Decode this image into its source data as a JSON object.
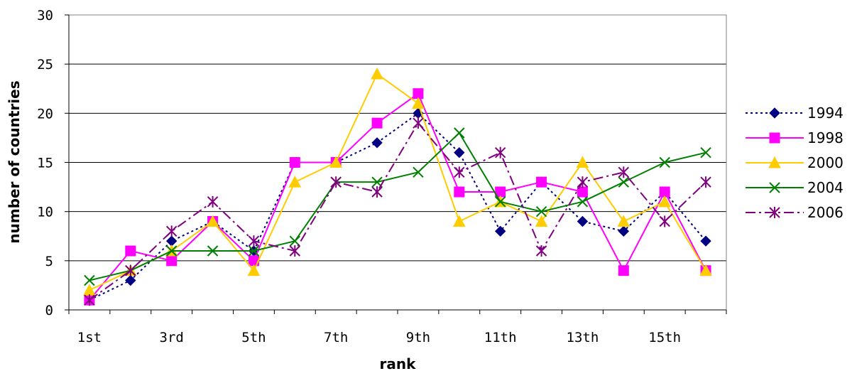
{
  "chart_data": {
    "type": "line",
    "title": "",
    "xlabel": "rank",
    "ylabel": "number of countries",
    "categories": [
      "1st",
      "2nd",
      "3rd",
      "4th",
      "5th",
      "6th",
      "7th",
      "8th",
      "9th",
      "10th",
      "11th",
      "12th",
      "13th",
      "14th",
      "15th",
      "16th"
    ],
    "x_tick_labels_shown": [
      "1st",
      "3rd",
      "5th",
      "7th",
      "9th",
      "11th",
      "13th",
      "15th"
    ],
    "y_ticks": [
      "0",
      "5",
      "10",
      "15",
      "20",
      "25",
      "30"
    ],
    "ylim": [
      0,
      30
    ],
    "grid": "horizontal",
    "legend_position": "right",
    "series": [
      {
        "name": "1994",
        "color": "#000080",
        "dash": "dotted",
        "marker": "diamond",
        "values": [
          1,
          3,
          7,
          9,
          6,
          15,
          15,
          17,
          20,
          16,
          8,
          13,
          9,
          8,
          12,
          7
        ]
      },
      {
        "name": "1998",
        "color": "#FF00FF",
        "dash": "solid",
        "marker": "square",
        "values": [
          1,
          6,
          5,
          9,
          5,
          15,
          15,
          19,
          22,
          12,
          12,
          13,
          12,
          4,
          12,
          4
        ]
      },
      {
        "name": "2000",
        "color": "#FFCC00",
        "dash": "solid",
        "marker": "triangle",
        "values": [
          2,
          4,
          6,
          9,
          4,
          13,
          15,
          24,
          21,
          9,
          11,
          9,
          15,
          9,
          11,
          4
        ]
      },
      {
        "name": "2004",
        "color": "#008000",
        "dash": "solid",
        "marker": "x",
        "values": [
          3,
          4,
          6,
          6,
          6,
          7,
          13,
          13,
          14,
          18,
          11,
          10,
          11,
          13,
          15,
          16
        ]
      },
      {
        "name": "2006",
        "color": "#800080",
        "dash": "dashdot",
        "marker": "asterisk",
        "values": [
          1,
          4,
          8,
          11,
          7,
          6,
          13,
          12,
          19,
          14,
          16,
          6,
          13,
          14,
          9,
          13
        ]
      }
    ]
  }
}
